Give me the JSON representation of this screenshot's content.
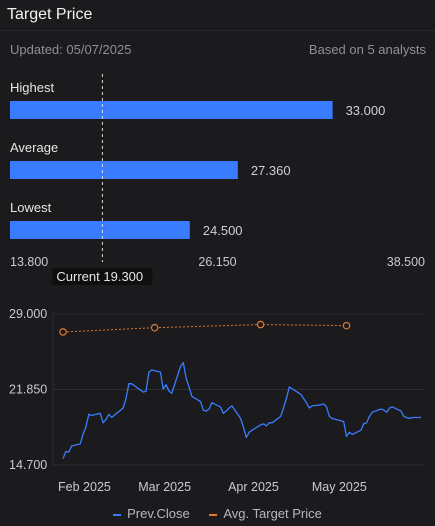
{
  "header": {
    "title": "Target Price",
    "updated": "Updated:  05/07/2025",
    "based_on": "Based on 5 analysts"
  },
  "colors": {
    "bar": "#3a7cff",
    "prev_close": "#3a7cff",
    "avg_target": "#e0792e"
  },
  "chart_data": [
    {
      "type": "bar",
      "orientation": "horizontal",
      "categories": [
        "Highest",
        "Average",
        "Lowest"
      ],
      "values": [
        33.0,
        27.36,
        24.5
      ],
      "value_labels": [
        "33.000",
        "27.360",
        "24.500"
      ],
      "xlim": [
        13.8,
        38.5
      ],
      "xticks": [
        13.8,
        26.15,
        38.5
      ],
      "xtick_labels": [
        "13.800",
        "26.150",
        "38.500"
      ],
      "current_value": 19.3,
      "current_label": "Current 19.300"
    },
    {
      "type": "line",
      "ylim": [
        14.7,
        29.0
      ],
      "yticks": [
        29.0,
        21.85,
        14.7
      ],
      "ytick_labels": [
        "29.000",
        "21.850",
        "14.700"
      ],
      "xticks": [
        "Feb 2025",
        "Mar 2025",
        "Apr 2025",
        "May 2025"
      ],
      "series": [
        {
          "name": "Prev.Close",
          "x": [
            "2025-01-28",
            "2025-01-29",
            "2025-01-30",
            "2025-01-31",
            "2025-02-03",
            "2025-02-04",
            "2025-02-05",
            "2025-02-06",
            "2025-02-07",
            "2025-02-10",
            "2025-02-11",
            "2025-02-12",
            "2025-02-13",
            "2025-02-14",
            "2025-02-18",
            "2025-02-19",
            "2025-02-20",
            "2025-02-21",
            "2025-02-24",
            "2025-02-25",
            "2025-02-26",
            "2025-02-27",
            "2025-02-28",
            "2025-03-03",
            "2025-03-04",
            "2025-03-05",
            "2025-03-06",
            "2025-03-07",
            "2025-03-10",
            "2025-03-11",
            "2025-03-12",
            "2025-03-13",
            "2025-03-14",
            "2025-03-17",
            "2025-03-18",
            "2025-03-19",
            "2025-03-20",
            "2025-03-21",
            "2025-03-24",
            "2025-03-25",
            "2025-03-26",
            "2025-03-27",
            "2025-03-28",
            "2025-03-31",
            "2025-04-01",
            "2025-04-02",
            "2025-04-03",
            "2025-04-04",
            "2025-04-07",
            "2025-04-08",
            "2025-04-09",
            "2025-04-10",
            "2025-04-11",
            "2025-04-14",
            "2025-04-15",
            "2025-04-16",
            "2025-04-17",
            "2025-04-21",
            "2025-04-22",
            "2025-04-23",
            "2025-04-24",
            "2025-04-25",
            "2025-04-28",
            "2025-04-29",
            "2025-04-30",
            "2025-05-01",
            "2025-05-02",
            "2025-05-05",
            "2025-05-06",
            "2025-05-07",
            "2025-05-08",
            "2025-05-09",
            "2025-05-12",
            "2025-05-13",
            "2025-05-14",
            "2025-05-15",
            "2025-05-16",
            "2025-05-19",
            "2025-05-20",
            "2025-05-21",
            "2025-05-22",
            "2025-05-23",
            "2025-05-26",
            "2025-05-27",
            "2025-05-28",
            "2025-05-29",
            "2025-05-30",
            "2025-06-02"
          ],
          "y": [
            15.3,
            16.0,
            15.9,
            16.5,
            16.7,
            17.6,
            18.3,
            19.5,
            19.4,
            19.6,
            18.7,
            19.0,
            19.5,
            19.2,
            20.1,
            21.0,
            22.4,
            22.4,
            21.8,
            21.6,
            21.7,
            23.5,
            23.7,
            23.5,
            21.9,
            22.3,
            21.7,
            21.5,
            24.0,
            24.4,
            22.9,
            22.1,
            21.2,
            20.7,
            19.9,
            19.8,
            20.0,
            20.6,
            20.2,
            19.6,
            19.8,
            20.1,
            20.3,
            19.1,
            18.3,
            17.3,
            17.8,
            18.0,
            18.5,
            18.6,
            18.4,
            18.7,
            18.7,
            19.3,
            20.1,
            21.0,
            22.1,
            21.4,
            21.0,
            20.6,
            20.1,
            20.3,
            20.4,
            20.5,
            20.2,
            19.3,
            19.1,
            18.9,
            18.8,
            17.4,
            17.8,
            17.6,
            18.0,
            18.6,
            18.7,
            19.3,
            19.7,
            20.0,
            19.9,
            19.7,
            20.1,
            20.2,
            19.8,
            19.3,
            19.2,
            19.1,
            19.2,
            19.2
          ],
          "color": "#3a7cff"
        },
        {
          "name": "Avg. Target Price",
          "x": [
            "2025-01-28",
            "2025-03-01",
            "2025-04-07",
            "2025-05-07"
          ],
          "y": [
            27.3,
            27.7,
            28.0,
            27.9
          ],
          "color": "#e0792e"
        }
      ],
      "legend": "bottom-center"
    }
  ]
}
